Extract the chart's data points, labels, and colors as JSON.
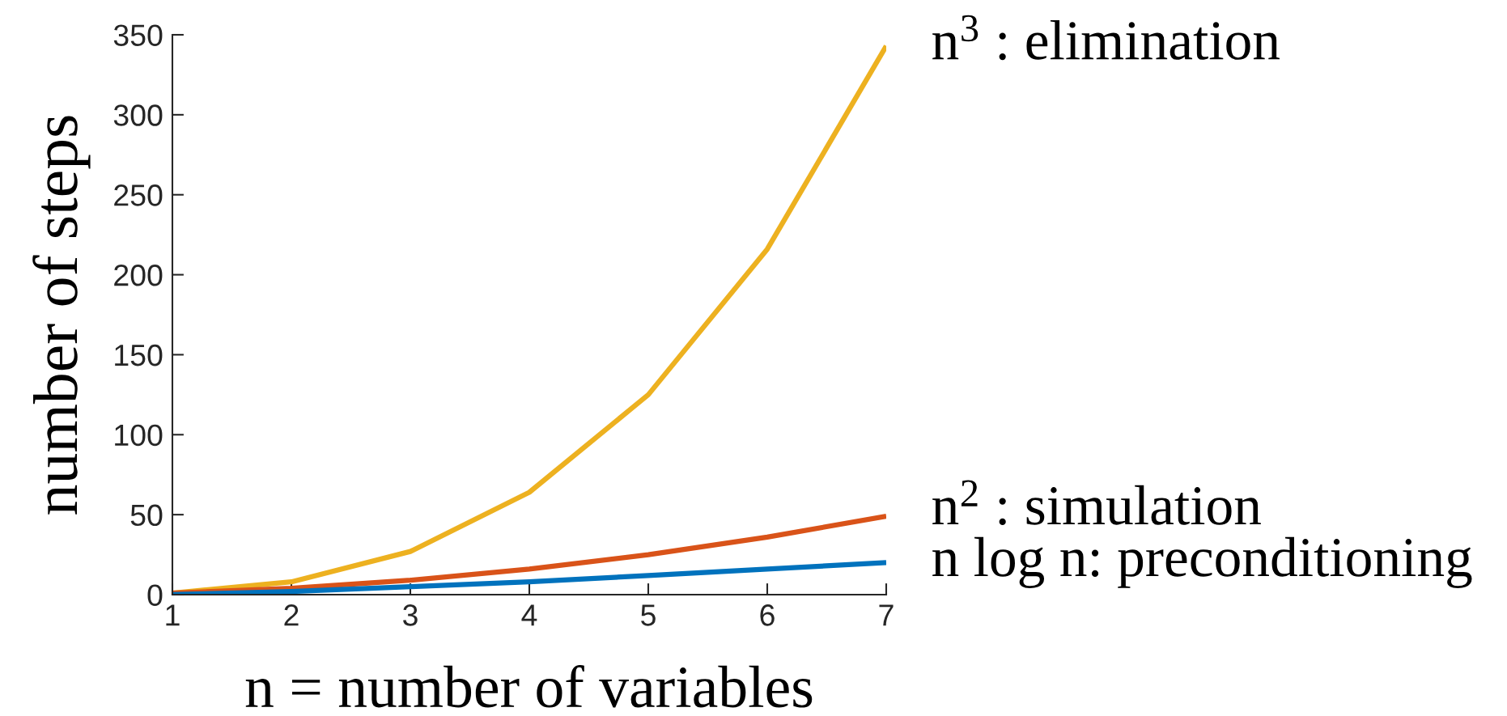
{
  "chart_data": {
    "type": "line",
    "xlabel": "n = number of variables",
    "ylabel": "number of steps",
    "x": [
      1,
      2,
      3,
      4,
      5,
      6,
      7
    ],
    "series": [
      {
        "name": "n$^{3}$ : elimination",
        "color": "#edb120",
        "values": [
          1,
          8,
          27,
          64,
          125,
          216,
          343
        ]
      },
      {
        "name": "n$^{2}$ : simulation",
        "color": "#d95319",
        "values": [
          1,
          4,
          9,
          16,
          25,
          36,
          49
        ]
      },
      {
        "name": "n log n: preconditioning",
        "color": "#0072bd",
        "values": [
          0,
          2,
          5,
          8,
          12,
          16,
          20
        ]
      }
    ],
    "xlim": [
      1,
      7
    ],
    "xticks": [
      1,
      2,
      3,
      4,
      5,
      6,
      7
    ],
    "ylim": [
      0,
      350
    ],
    "yticks": [
      0,
      50,
      100,
      150,
      200,
      250,
      300,
      350
    ],
    "grid": false
  }
}
